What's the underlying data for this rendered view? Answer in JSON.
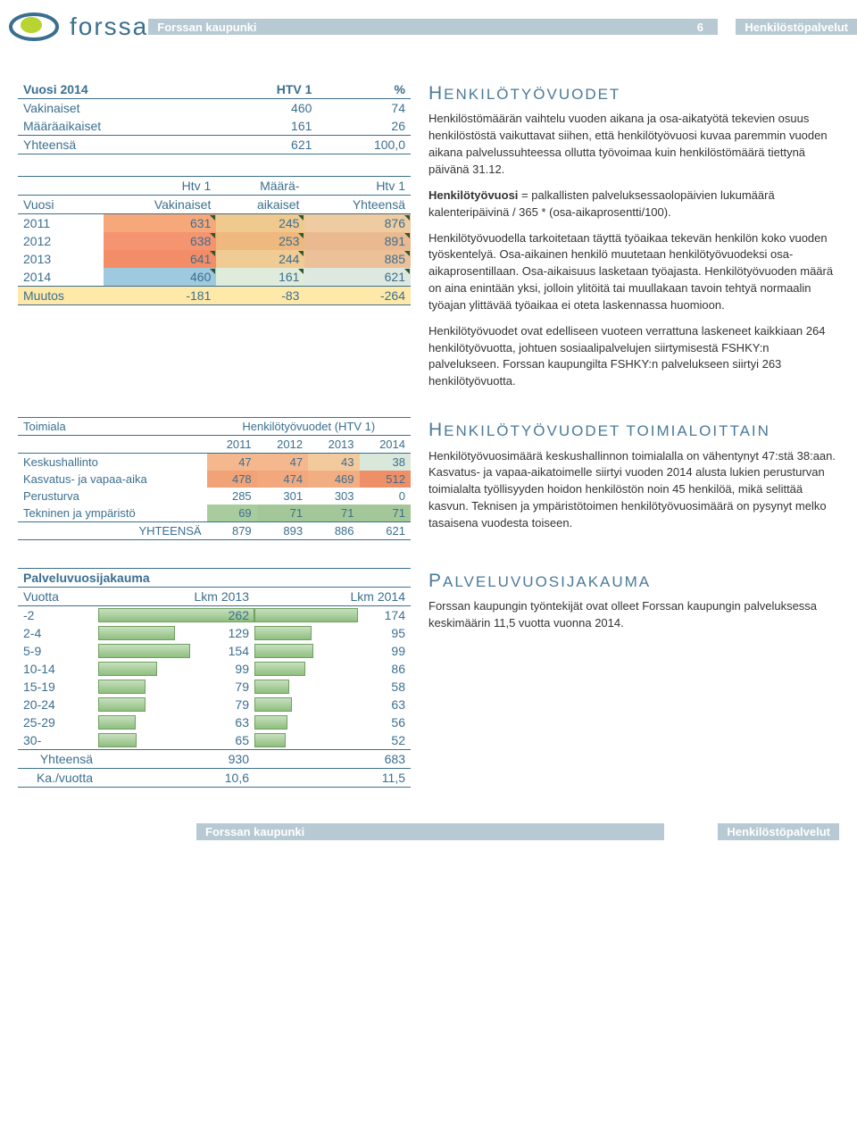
{
  "header": {
    "org": "Forssan kaupunki",
    "page": "6",
    "dept": "Henkilöstöpalvelut",
    "logo_text": "forssa"
  },
  "tbl1": {
    "headers": [
      "Vuosi 2014",
      "HTV 1",
      "%"
    ],
    "rows": [
      {
        "label": "Vakinaiset",
        "v1": "460",
        "v2": "74"
      },
      {
        "label": "Määräaikaiset",
        "v1": "161",
        "v2": "26"
      }
    ],
    "total": {
      "label": "Yhteensä",
      "v1": "621",
      "v2": "100,0"
    }
  },
  "tbl2": {
    "h1": [
      "",
      "Htv 1",
      "Määrä-",
      "Htv 1"
    ],
    "h2": [
      "Vuosi",
      "Vakinaiset",
      "aikaiset",
      "Yhteensä"
    ],
    "rows": [
      {
        "y": "2011",
        "c1": "631",
        "c2": "245",
        "c3": "876",
        "bg": [
          "#f7a87a",
          "#f0c98e",
          "#eecba0"
        ]
      },
      {
        "y": "2012",
        "c1": "638",
        "c2": "253",
        "c3": "891",
        "bg": [
          "#f59470",
          "#eeb87e",
          "#eab990"
        ]
      },
      {
        "y": "2013",
        "c1": "641",
        "c2": "244",
        "c3": "885",
        "bg": [
          "#f38d68",
          "#f1cb94",
          "#ecc098"
        ]
      },
      {
        "y": "2014",
        "c1": "460",
        "c2": "161",
        "c3": "621",
        "bg": [
          "#9fc9df",
          "#e0ecdb",
          "#dde9e0"
        ]
      }
    ],
    "muutos": {
      "label": "Muutos",
      "c1": "-181",
      "c2": "-83",
      "c3": "-264"
    }
  },
  "text1": {
    "heading": "HENKILÖTYÖVUODET",
    "p1": "Henkilöstömäärän vaihtelu vuoden aikana ja osa-aikatyötä tekevien osuus henkilöstöstä vaikuttavat siihen, että henkilötyövuosi kuvaa paremmin vuoden aikana palvelussuhteessa ollutta työvoimaa kuin henkilöstömäärä tiettynä päivänä 31.12.",
    "p2a": "Henkilötyövuosi",
    "p2b": " = palkallisten palveluksessaolopäivien lukumäärä kalenteripäivinä / 365 * (osa-aikaprosentti/100).",
    "p3": "Henkilötyövuodella tarkoitetaan täyttä työaikaa tekevän henkilön koko vuoden työskentelyä. Osa-aikainen henkilö muutetaan henkilötyövuodeksi osa-aikaprosentillaan. Osa-aikaisuus lasketaan työajasta. Henkilötyövuoden määrä on aina enintään yksi, jolloin ylitöitä tai muullakaan tavoin tehtyä normaalin työajan ylittävää työaikaa ei oteta laskennassa huomioon.",
    "p4": "Henkilötyövuodet ovat edelliseen vuoteen verrattuna laskeneet kaikkiaan 264 henkilötyövuotta, johtuen sosiaalipalvelujen siirtymisestä FSHKY:n palvelukseen. Forssan kaupungilta FSHKY:n palvelukseen siirtyi 263 henkilötyövuotta."
  },
  "tbl3": {
    "title_left": "Toimiala",
    "title_right": "Henkilötyövuodet (HTV 1)",
    "years": [
      "2011",
      "2012",
      "2013",
      "2014"
    ],
    "rows": [
      {
        "label": "Keskushallinto",
        "v": [
          "47",
          "47",
          "43",
          "38"
        ],
        "bg": [
          "#f5b88e",
          "#f5b88e",
          "#f3ca9c",
          "#dae7db"
        ]
      },
      {
        "label": "Kasvatus- ja vapaa-aika",
        "v": [
          "478",
          "474",
          "469",
          "512"
        ],
        "bg": [
          "#f1a377",
          "#f2a87c",
          "#f3ad82",
          "#ee8f68"
        ]
      },
      {
        "label": "Perusturva",
        "v": [
          "285",
          "301",
          "303",
          "0"
        ],
        "bg": [
          "",
          "",
          "",
          ""
        ]
      },
      {
        "label": "Tekninen ja ympäristö",
        "v": [
          "69",
          "71",
          "71",
          "71"
        ],
        "bg": [
          "#a9cc9f",
          "#a3c799",
          "#a3c799",
          "#a3c799"
        ]
      }
    ],
    "total": {
      "label": "YHTEENSÄ",
      "v": [
        "879",
        "893",
        "886",
        "621"
      ]
    }
  },
  "text2": {
    "heading": "HENKILÖTYÖVUODET TOIMIALOITTAIN",
    "p1": "Henkilötyövuosimäärä keskushallinnon toimialalla on vähentynyt 47:stä 38:aan. Kasvatus- ja vapaa-aikatoimelle siirtyi vuoden 2014 alusta lukien perusturvan toimialalta työllisyyden hoidon henkilöstön noin 45 henkilöä, mikä selittää kasvun. Teknisen ja ympäristötoimen henkilötyövuosimäärä on pysynyt melko tasaisena vuodesta toiseen."
  },
  "tbl4": {
    "title": "Palveluvuosijakauma",
    "headers": [
      "Vuotta",
      "Lkm 2013",
      "Lkm 2014"
    ],
    "max": 262,
    "rows": [
      {
        "label": "-2",
        "a": 262,
        "b": 174
      },
      {
        "label": "2-4",
        "a": 129,
        "b": 95
      },
      {
        "label": "5-9",
        "a": 154,
        "b": 99
      },
      {
        "label": "10-14",
        "a": 99,
        "b": 86
      },
      {
        "label": "15-19",
        "a": 79,
        "b": 58
      },
      {
        "label": "20-24",
        "a": 79,
        "b": 63
      },
      {
        "label": "25-29",
        "a": 63,
        "b": 56
      },
      {
        "label": "30-",
        "a": 65,
        "b": 52
      }
    ],
    "sum": {
      "label": "Yhteensä",
      "a": "930",
      "b": "683"
    },
    "avg": {
      "label": "Ka./vuotta",
      "a": "10,6",
      "b": "11,5"
    }
  },
  "text3": {
    "heading": "PALVELUVUOSIJAKAUMA",
    "p1": "Forssan kaupungin työntekijät ovat olleet Forssan kaupungin palveluksessa keskimäärin 11,5 vuotta vuonna 2014."
  },
  "footer": {
    "left": "Forssan kaupunki",
    "right": "Henkilöstöpalvelut"
  },
  "colors": {
    "brand": "#3b6f8f",
    "barhdr": "#b7c9d3"
  }
}
